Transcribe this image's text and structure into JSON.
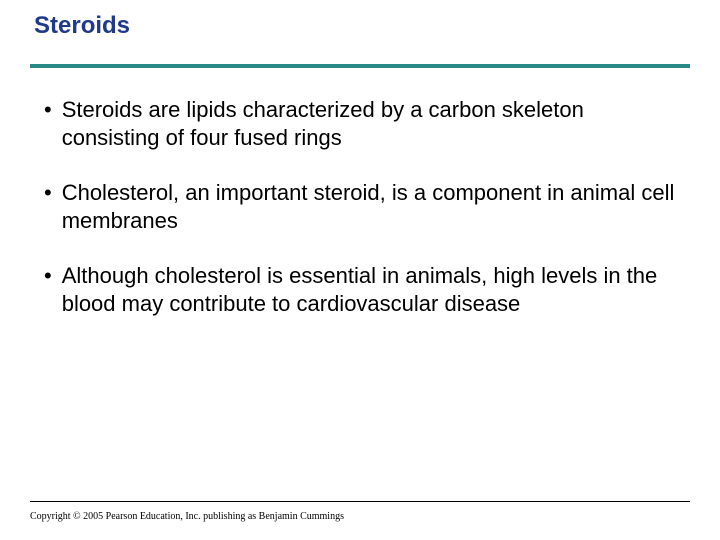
{
  "title": "Steroids",
  "title_color": "#1f3a8a",
  "divider_color": "#2a8a8a",
  "background_color": "#ffffff",
  "text_color": "#000000",
  "title_fontsize": 24,
  "body_fontsize": 22,
  "bullets": [
    "Steroids are lipids characterized by a carbon skeleton consisting of four fused rings",
    "Cholesterol, an important steroid, is a component in animal cell membranes",
    "Although cholesterol is essential in animals, high levels in the blood may contribute to cardiovascular disease"
  ],
  "copyright": "Copyright © 2005 Pearson Education, Inc. publishing as Benjamin Cummings"
}
